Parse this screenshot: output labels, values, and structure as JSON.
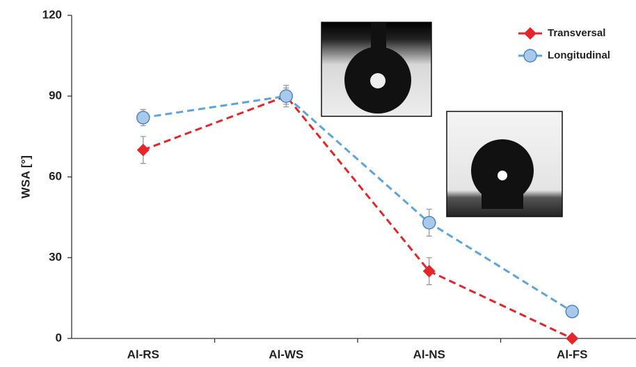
{
  "chart_data": {
    "type": "line",
    "y_label": "WSA [°]",
    "categories": [
      "Al-RS",
      "Al-WS",
      "Al-NS",
      "Al-FS"
    ],
    "series": [
      {
        "name": "Transversal",
        "color": "#e5252a",
        "marker": "diamond",
        "values": [
          70,
          90,
          25,
          0
        ],
        "errors": [
          5,
          3,
          5,
          0
        ]
      },
      {
        "name": "Longitudinal",
        "color": "#5ba4dc",
        "marker": "circle",
        "values": [
          82,
          90,
          43,
          10
        ],
        "errors": [
          3,
          4,
          5,
          1
        ]
      }
    ],
    "ylim": [
      0,
      120
    ],
    "yticks": [
      0,
      30,
      60,
      90,
      120
    ],
    "grid": false,
    "legend": "top-right",
    "line_style": "dashed"
  }
}
